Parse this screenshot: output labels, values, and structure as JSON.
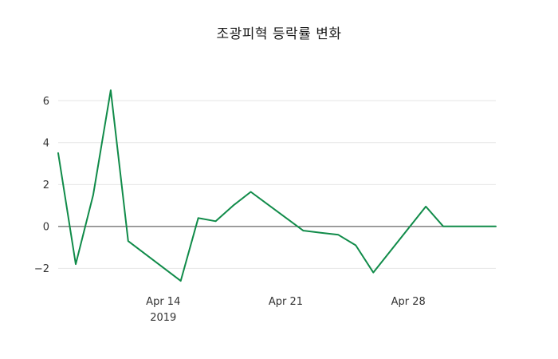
{
  "chart_data": {
    "type": "line",
    "title": "조광피혁 등락률 변화",
    "x": [
      "2019-04-08",
      "2019-04-09",
      "2019-04-10",
      "2019-04-11",
      "2019-04-12",
      "2019-04-15",
      "2019-04-16",
      "2019-04-17",
      "2019-04-18",
      "2019-04-19",
      "2019-04-22",
      "2019-04-23",
      "2019-04-24",
      "2019-04-25",
      "2019-04-26",
      "2019-04-29",
      "2019-04-30",
      "2019-05-02",
      "2019-05-03"
    ],
    "values": [
      3.5,
      -1.8,
      1.5,
      6.5,
      -0.7,
      -2.6,
      0.4,
      0.25,
      1.0,
      1.65,
      -0.2,
      -0.3,
      -0.4,
      -0.9,
      -2.2,
      0.95,
      0.0,
      0.0,
      0.0
    ],
    "line_color": "#108b49",
    "background": "#ffffff",
    "grid": true,
    "grid_color": "#e6e6e6",
    "zero_line_color": "#444444",
    "tick_color": "#333333",
    "ylim": [
      -2.9,
      7.0
    ],
    "yticks": [
      -2,
      0,
      2,
      4,
      6
    ],
    "ytick_labels": [
      "−2",
      "0",
      "2",
      "4",
      "6"
    ],
    "xticks": [
      {
        "date": "2019-04-14",
        "label": "Apr 14",
        "sublabel": "2019"
      },
      {
        "date": "2019-04-21",
        "label": "Apr 21",
        "sublabel": ""
      },
      {
        "date": "2019-04-28",
        "label": "Apr 28",
        "sublabel": ""
      }
    ],
    "legend": "off",
    "xlabel": "",
    "ylabel": ""
  }
}
